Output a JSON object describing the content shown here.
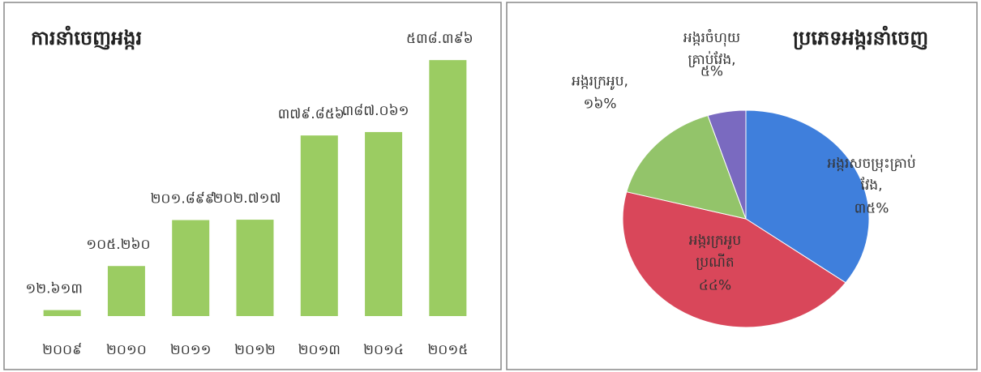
{
  "chart_data": [
    {
      "type": "bar",
      "title": "ការនាំចេញអង្ករ",
      "categories": [
        "២០០៩",
        "២០១០",
        "២០១១",
        "២០១២",
        "២០១៣",
        "២០១៤",
        "២០១៥"
      ],
      "values": [
        12613,
        105260,
        201899,
        202717,
        379856,
        387061,
        538396
      ],
      "value_labels": [
        "១២.៦១៣",
        "១០៥.២៦០",
        "២០១.៨៩៩",
        "២០២.៧១៧",
        "៣៧៩.៨៥៦",
        "៣៨៧.០៦១",
        "៥៣៨.៣៩៦"
      ],
      "color": "#9bcc62",
      "ylim": [
        0,
        600000
      ]
    },
    {
      "type": "pie",
      "title": "ប្រភេទអង្ករនាំចេញ",
      "categories": [
        "អង្ករសចម្រុះគ្រាប់វែង,",
        "អង្ករក្រអូបប្រណីត",
        "អង្ករក្រអូប,",
        "អង្ករចំហុយគ្រាប់វែង,"
      ],
      "values": [
        35,
        44,
        16,
        5
      ],
      "value_labels": [
        "៣៥%",
        "៤៤%",
        "១៦%",
        "៥%"
      ],
      "colors": [
        "#3f7fdc",
        "#d9475a",
        "#93c46a",
        "#7a6ac0"
      ]
    }
  ]
}
